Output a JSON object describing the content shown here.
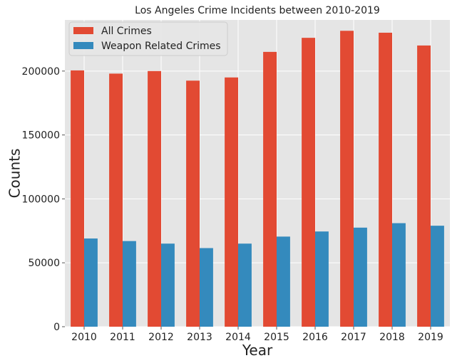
{
  "chart_data": {
    "type": "bar",
    "title": "Los Angeles Crime Incidents between 2010-2019",
    "xlabel": "Year",
    "ylabel": "Counts",
    "categories": [
      "2010",
      "2011",
      "2012",
      "2013",
      "2014",
      "2015",
      "2016",
      "2017",
      "2018",
      "2019"
    ],
    "series": [
      {
        "name": "All Crimes",
        "color": "#E24A33",
        "values": [
          200500,
          198000,
          200000,
          192500,
          195000,
          215000,
          226000,
          231500,
          230000,
          220000
        ]
      },
      {
        "name": "Weapon Related Crimes",
        "color": "#348ABD",
        "values": [
          69000,
          67000,
          65000,
          61500,
          65000,
          70500,
          74500,
          77500,
          81000,
          79000
        ]
      }
    ],
    "ylim": [
      0,
      240000
    ],
    "yticks": [
      0,
      50000,
      100000,
      150000,
      200000
    ],
    "ytick_labels": [
      "0",
      "50000",
      "100000",
      "150000",
      "200000"
    ],
    "grid": true,
    "legend_position": "top-left",
    "background": "#E5E5E5"
  }
}
